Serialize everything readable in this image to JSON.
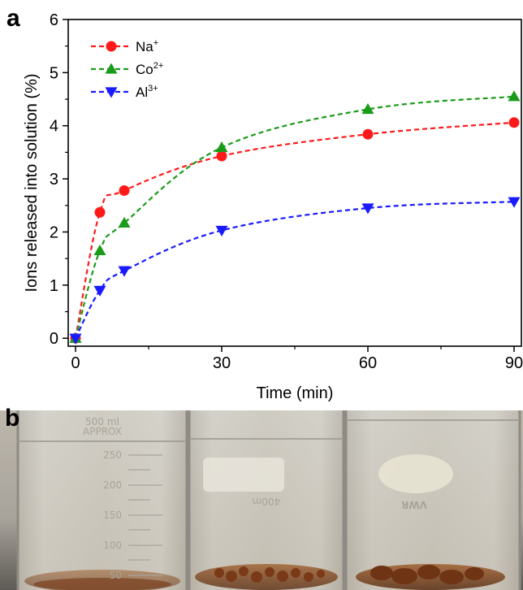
{
  "panels": {
    "a_label": "a",
    "b_label": "b"
  },
  "chart_data": {
    "type": "line",
    "xlabel": "Time (min)",
    "ylabel": "Ions released into solution (%)",
    "xlim": [
      -1.5,
      91.5
    ],
    "ylim": [
      -0.15,
      6
    ],
    "xticks": [
      0,
      30,
      60,
      90
    ],
    "yticks": [
      0,
      1,
      2,
      3,
      4,
      5,
      6
    ],
    "grid": false,
    "legend_position": "top-left",
    "series": [
      {
        "name": "Na",
        "sup": "+",
        "color": "#ff1a1a",
        "marker": "circle",
        "x": [
          0,
          5,
          10,
          30,
          60,
          90
        ],
        "y": [
          0,
          2.37,
          2.78,
          3.43,
          3.84,
          4.06
        ]
      },
      {
        "name": "Co",
        "sup": "2+",
        "color": "#1a9b1a",
        "marker": "triangle-up",
        "x": [
          0,
          5,
          10,
          30,
          60,
          90
        ],
        "y": [
          0,
          1.65,
          2.17,
          3.59,
          4.31,
          4.55
        ]
      },
      {
        "name": "Al",
        "sup": "3+",
        "color": "#1a1aff",
        "marker": "triangle-down",
        "x": [
          0,
          5,
          10,
          30,
          60,
          90
        ],
        "y": [
          0,
          0.9,
          1.27,
          2.03,
          2.45,
          2.57
        ]
      }
    ]
  },
  "photo": {
    "beaker1_top_text": "500 ml",
    "beaker1_approx": "APPROX",
    "beaker1_graduations": [
      "250",
      "200",
      "150",
      "100",
      "50"
    ],
    "beaker2_marking": "400m",
    "beaker3_marking": "VWR",
    "colors": {
      "background_top": "#b9b3a8",
      "background_bottom": "#6e6b66",
      "water": "#c9c6bd",
      "sediment": "#8a4a22"
    }
  }
}
